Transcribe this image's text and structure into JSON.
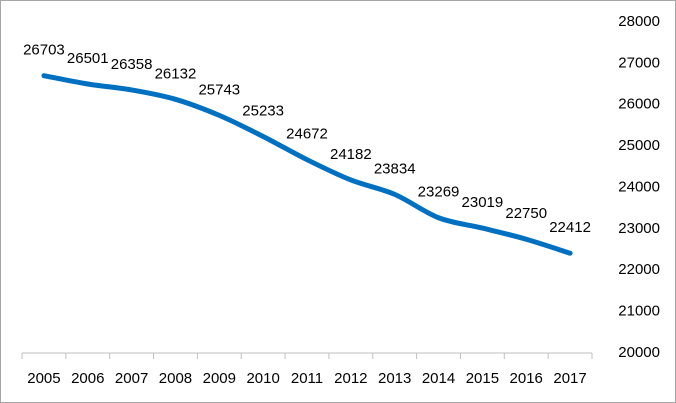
{
  "chart_data": {
    "type": "line",
    "categories": [
      "2005",
      "2006",
      "2007",
      "2008",
      "2009",
      "2010",
      "2011",
      "2012",
      "2013",
      "2014",
      "2015",
      "2016",
      "2017"
    ],
    "values": [
      26703,
      26501,
      26358,
      26132,
      25743,
      25233,
      24672,
      24182,
      23834,
      23269,
      23019,
      22750,
      22412
    ],
    "color": "#0070c0",
    "ylim": [
      20000,
      28000
    ],
    "yticks": [
      20000,
      21000,
      22000,
      23000,
      24000,
      25000,
      26000,
      27000,
      28000
    ],
    "y_axis_side": "right",
    "smooth": true,
    "data_labels": true,
    "grid": false
  }
}
